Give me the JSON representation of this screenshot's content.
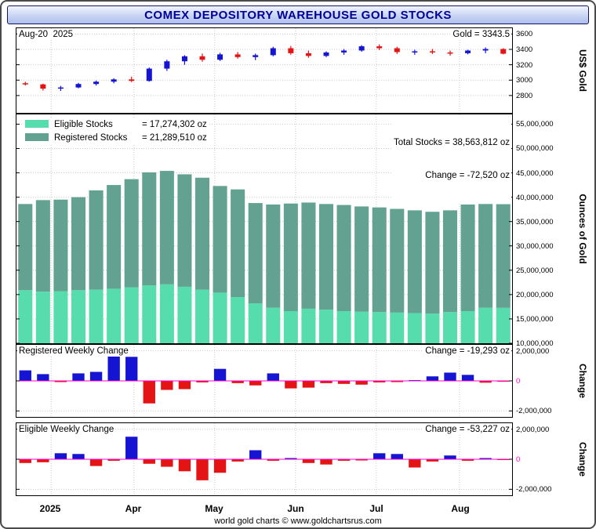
{
  "header": {
    "title": "COMEX DEPOSITORY WAREHOUSE GOLD STOCKS"
  },
  "price_panel": {
    "date_label": "Aug-20  2025",
    "price_label": "Gold = 3343.5",
    "axis_title": "US$ Gold"
  },
  "stocks_panel": {
    "legend": [
      {
        "label": "Eligible Stocks",
        "value": "= 17,274,302 oz"
      },
      {
        "label": "Registered Stocks",
        "value": "= 21,289,510 oz"
      }
    ],
    "total_label": "Total Stocks = 38,563,812 oz",
    "change_label": "Change = -72,520 oz",
    "axis_title": "Ounces of Gold"
  },
  "registered_panel": {
    "title": "Registered Weekly Change",
    "change_label": "Change = -19,293 oz",
    "axis_title": "Change"
  },
  "eligible_panel": {
    "title": "Eligible Weekly Change",
    "change_label": "Change = -53,227 oz",
    "axis_title": "Change"
  },
  "xaxis": {
    "labels": [
      "2025",
      "Apr",
      "May",
      "Jun",
      "Jul",
      "Aug"
    ]
  },
  "footer": {
    "text": "world gold charts © www.goldchartsrus.com"
  },
  "colors": {
    "up": "#1414d2",
    "down": "#e41414",
    "eligible": "#57dcae",
    "registered": "#63a191",
    "zero_line": "#ff00c8",
    "grid": "#c9c9c9",
    "title_text": "#000099"
  },
  "chart_data": [
    {
      "type": "candlestick",
      "title": "Weekly gold price (US$)",
      "ylabel": "US$ Gold",
      "ylim": [
        2575,
        3675
      ],
      "yticks": [
        2800,
        3000,
        3200,
        3400,
        3600
      ],
      "x_labels": [
        "2025",
        "Apr",
        "May",
        "Jun",
        "Jul",
        "Aug"
      ],
      "last_close": 3343.5,
      "candles": [
        [
          2960,
          2980,
          2930,
          2945
        ],
        [
          2945,
          2955,
          2865,
          2890
        ],
        [
          2890,
          2925,
          2860,
          2905
        ],
        [
          2905,
          2965,
          2895,
          2950
        ],
        [
          2950,
          2995,
          2930,
          2980
        ],
        [
          2980,
          3025,
          2960,
          3010
        ],
        [
          3010,
          3045,
          2975,
          2990
        ],
        [
          2990,
          3165,
          2980,
          3150
        ],
        [
          3150,
          3265,
          3120,
          3245
        ],
        [
          3245,
          3325,
          3200,
          3310
        ],
        [
          3310,
          3345,
          3240,
          3265
        ],
        [
          3265,
          3355,
          3250,
          3335
        ],
        [
          3335,
          3365,
          3280,
          3300
        ],
        [
          3300,
          3345,
          3260,
          3325
        ],
        [
          3325,
          3435,
          3310,
          3415
        ],
        [
          3415,
          3445,
          3330,
          3350
        ],
        [
          3350,
          3385,
          3290,
          3315
        ],
        [
          3315,
          3375,
          3300,
          3360
        ],
        [
          3360,
          3405,
          3330,
          3385
        ],
        [
          3385,
          3455,
          3370,
          3440
        ],
        [
          3440,
          3465,
          3390,
          3415
        ],
        [
          3415,
          3435,
          3340,
          3365
        ],
        [
          3365,
          3395,
          3330,
          3375
        ],
        [
          3375,
          3405,
          3340,
          3360
        ],
        [
          3360,
          3385,
          3320,
          3350
        ],
        [
          3350,
          3395,
          3335,
          3385
        ],
        [
          3385,
          3425,
          3350,
          3405
        ],
        [
          3405,
          3415,
          3335,
          3343.5
        ]
      ]
    },
    {
      "type": "bar",
      "stacked": true,
      "title": "COMEX warehouse gold stocks (oz)",
      "ylabel": "Ounces of Gold",
      "ylim": [
        10000000,
        57000000
      ],
      "yticks": [
        10000000,
        15000000,
        20000000,
        25000000,
        30000000,
        35000000,
        40000000,
        45000000,
        50000000,
        55000000
      ],
      "x_labels": [
        "2025",
        "Apr",
        "May",
        "Jun",
        "Jul",
        "Aug"
      ],
      "totals_last": 38563812,
      "series": [
        {
          "name": "Eligible Stocks",
          "color_key": "eligible",
          "values": [
            20900000,
            20600000,
            20700000,
            20900000,
            21000000,
            21200000,
            21500000,
            21900000,
            22100000,
            21600000,
            21000000,
            20400000,
            19500000,
            18200000,
            17300000,
            16600000,
            17100000,
            16900000,
            16600000,
            16500000,
            16400000,
            16300000,
            16200000,
            16100000,
            16400000,
            16600000,
            17300000,
            17274302
          ]
        },
        {
          "name": "Registered Stocks",
          "color_key": "registered",
          "values": [
            17700000,
            18800000,
            18800000,
            19100000,
            20400000,
            21300000,
            22200000,
            23200000,
            23300000,
            23100000,
            23000000,
            21900000,
            22100000,
            20600000,
            21200000,
            22100000,
            21800000,
            21700000,
            21800000,
            21600000,
            21500000,
            21300000,
            21100000,
            20900000,
            20900000,
            21900000,
            21300000,
            21289510
          ]
        }
      ]
    },
    {
      "type": "bar",
      "title": "Registered Weekly Change",
      "ylabel": "Change",
      "ylim": [
        -2400000,
        2400000
      ],
      "yticks": [
        -2000000,
        0,
        2000000
      ],
      "x_labels": [
        "2025",
        "Apr",
        "May",
        "Jun",
        "Jul",
        "Aug"
      ],
      "values": [
        700000,
        450000,
        -80000,
        500000,
        600000,
        2000000,
        1600000,
        -1500000,
        -600000,
        -550000,
        -100000,
        800000,
        -150000,
        -300000,
        500000,
        -500000,
        -450000,
        -150000,
        -200000,
        -250000,
        -100000,
        -80000,
        50000,
        300000,
        550000,
        400000,
        -120000,
        -19293
      ]
    },
    {
      "type": "bar",
      "title": "Eligible Weekly Change",
      "ylabel": "Change",
      "ylim": [
        -2400000,
        2400000
      ],
      "yticks": [
        -2000000,
        0,
        2000000
      ],
      "x_labels": [
        "2025",
        "Apr",
        "May",
        "Jun",
        "Jul",
        "Aug"
      ],
      "values": [
        -250000,
        -200000,
        400000,
        350000,
        -450000,
        -100000,
        1500000,
        -300000,
        -500000,
        -800000,
        -1400000,
        -900000,
        -150000,
        600000,
        -100000,
        80000,
        -250000,
        -350000,
        -100000,
        -80000,
        400000,
        350000,
        -550000,
        -150000,
        250000,
        -100000,
        80000,
        -53227
      ]
    }
  ]
}
